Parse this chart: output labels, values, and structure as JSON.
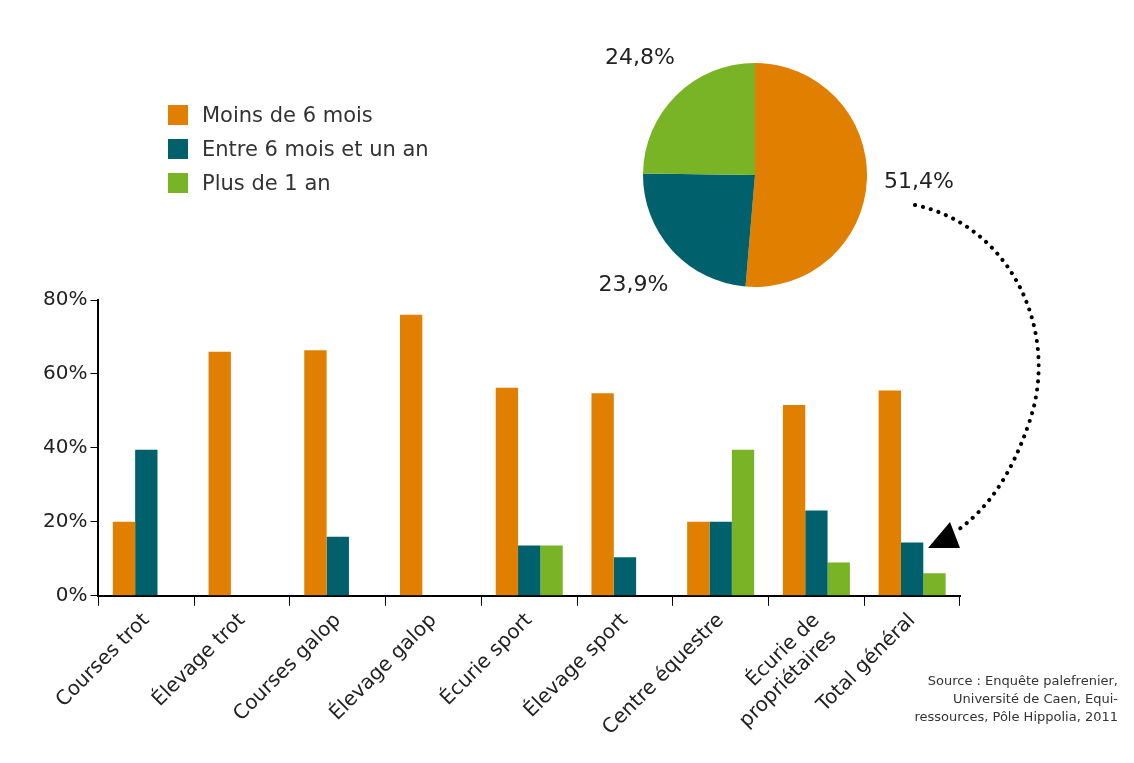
{
  "chart_data": [
    {
      "type": "pie",
      "categories": [
        null,
        null,
        null
      ],
      "values": [
        51.4,
        23.9,
        24.8
      ],
      "colors": [
        "#e07f00",
        "#00606b",
        "#78b425"
      ],
      "value_labels": [
        "51,4%",
        "23,9%",
        "24,8%"
      ],
      "legend": false
    },
    {
      "type": "bar",
      "categories": [
        "Courses trot",
        "Élevage trot",
        "Courses galop",
        "Élevage galop",
        "Écurie sport",
        "Élevage sport",
        "Centre équestre",
        "Écurie de propriétaires",
        "Total général"
      ],
      "series": [
        {
          "name": "Moins de 6 mois",
          "color": "#e07f00",
          "values": [
            20,
            66,
            66.4,
            76,
            56.3,
            54.8,
            20,
            51.6,
            55.5
          ]
        },
        {
          "name": "Entre 6 mois et un an",
          "color": "#00606b",
          "values": [
            39.5,
            0,
            16,
            0,
            13.6,
            10.4,
            20,
            23.1,
            14.4
          ]
        },
        {
          "name": "Plus de 1 an",
          "color": "#78b425",
          "values": [
            0,
            0,
            0,
            0,
            13.6,
            0,
            39.5,
            9,
            6.1
          ]
        }
      ],
      "ylim": [
        0,
        80
      ],
      "yticks": [
        {
          "value": 0,
          "label": "0%"
        },
        {
          "value": 20,
          "label": "20%"
        },
        {
          "value": 40,
          "label": "40%"
        },
        {
          "value": 60,
          "label": "60%"
        },
        {
          "value": 80,
          "label": "80%"
        }
      ],
      "grid": false,
      "legend": "top left",
      "annotations": [
        "Source : Enquête palefrenier, Université de Caen, Equi-ressources, Pôle Hippolia, 2011"
      ]
    }
  ]
}
